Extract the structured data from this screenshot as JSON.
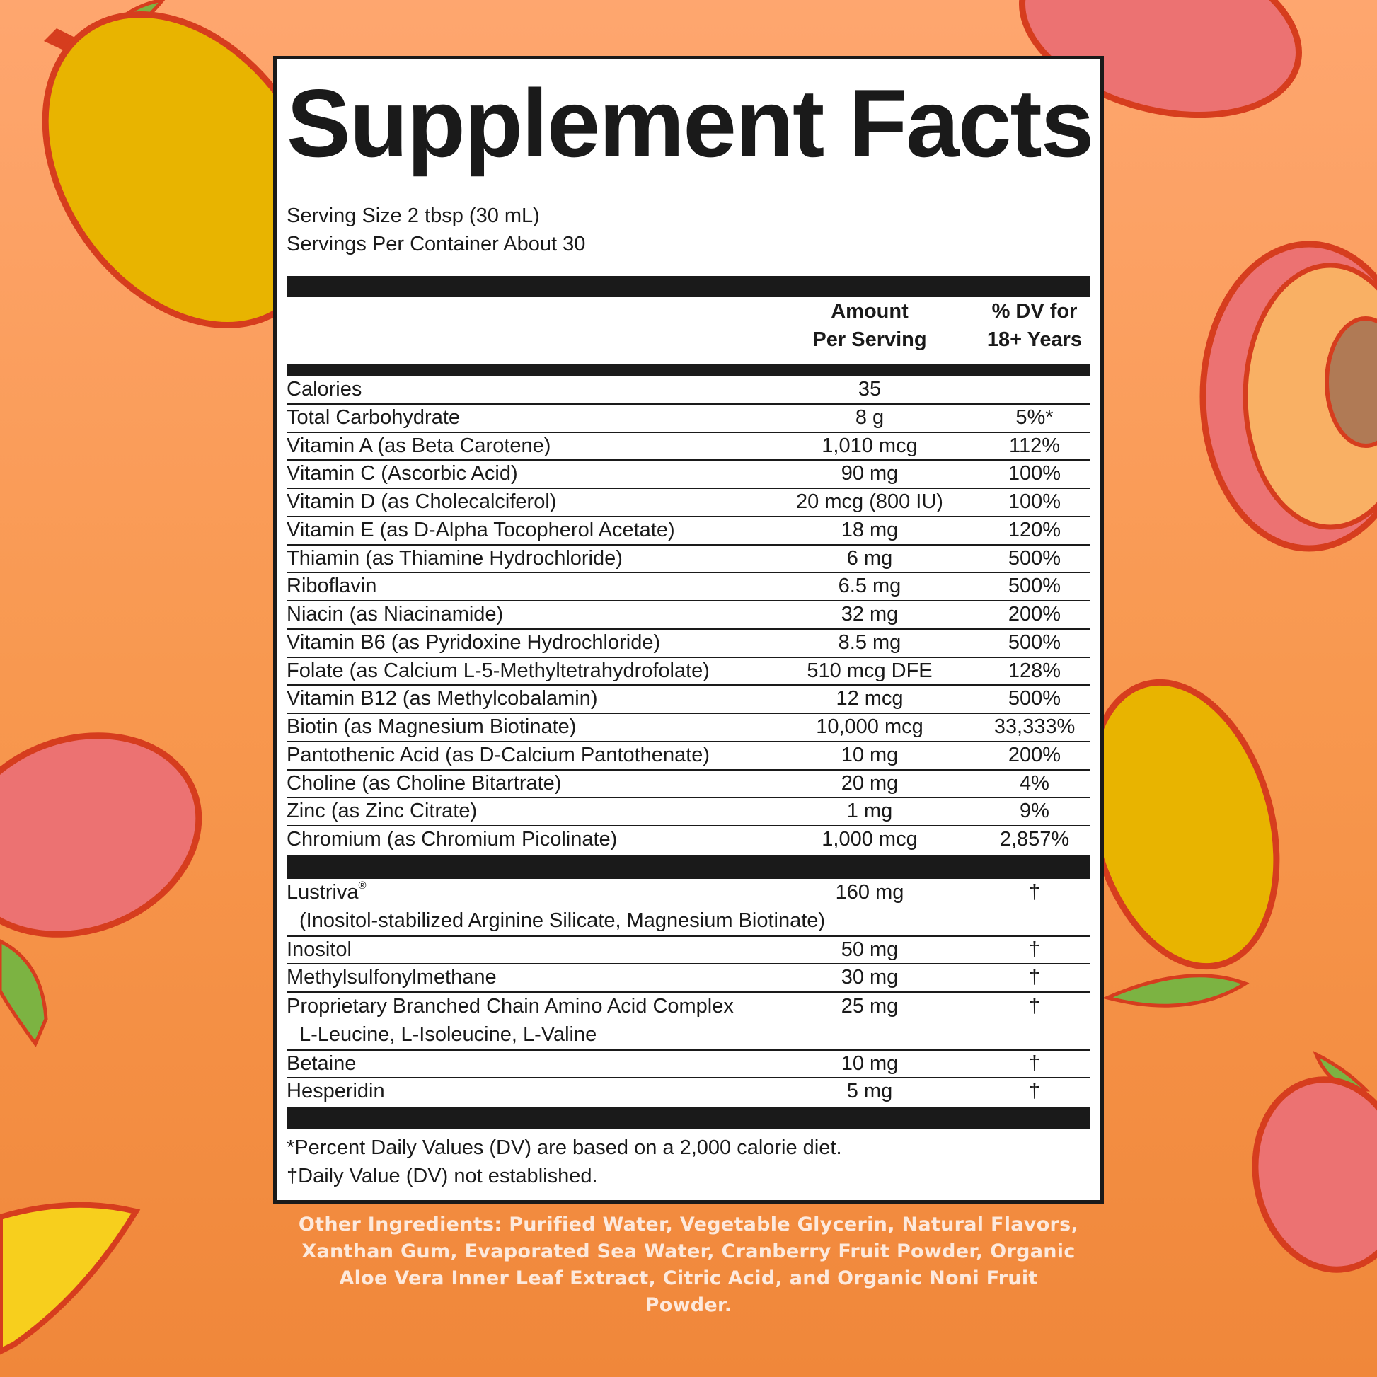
{
  "colors": {
    "background_top": "#fea66f",
    "background_bottom": "#f0873a",
    "fruit_yellow": "#e8b400",
    "fruit_pink": "#ec7272",
    "fruit_outline": "#d63d1e",
    "leaf": "#7cb342",
    "text_on_orange": "#fde9dc"
  },
  "panel": {
    "title": "Supplement Facts",
    "serving_size": "Serving Size 2 tbsp (30 mL)",
    "servings_per_container": "Servings Per Container About 30",
    "header": {
      "amount_line1": "Amount",
      "amount_line2": "Per Serving",
      "dv_line1": "% DV for",
      "dv_line2": "18+ Years"
    },
    "nutrients": [
      {
        "name": "Calories",
        "amount": "35",
        "dv": ""
      },
      {
        "name": "Total Carbohydrate",
        "amount": "8 g",
        "dv": "5%*"
      },
      {
        "name": "Vitamin A (as Beta Carotene)",
        "amount": "1,010 mcg",
        "dv": "112%"
      },
      {
        "name": "Vitamin C (Ascorbic Acid)",
        "amount": "90 mg",
        "dv": "100%"
      },
      {
        "name": "Vitamin D (as Cholecalciferol)",
        "amount": "20 mcg (800 IU)",
        "dv": "100%"
      },
      {
        "name": "Vitamin E (as D-Alpha Tocopherol Acetate)",
        "amount": "18 mg",
        "dv": "120%"
      },
      {
        "name": "Thiamin (as Thiamine Hydrochloride)",
        "amount": "6 mg",
        "dv": "500%"
      },
      {
        "name": "Riboflavin",
        "amount": "6.5 mg",
        "dv": "500%"
      },
      {
        "name": "Niacin (as Niacinamide)",
        "amount": "32 mg",
        "dv": "200%"
      },
      {
        "name": "Vitamin B6 (as Pyridoxine Hydrochloride)",
        "amount": "8.5 mg",
        "dv": "500%"
      },
      {
        "name": "Folate (as Calcium L-5-Methyltetrahydrofolate)",
        "amount": "510 mcg DFE",
        "dv": "128%"
      },
      {
        "name": "Vitamin B12 (as Methylcobalamin)",
        "amount": "12 mcg",
        "dv": "500%"
      },
      {
        "name": "Biotin (as Magnesium Biotinate)",
        "amount": "10,000 mcg",
        "dv": "33,333%"
      },
      {
        "name": "Pantothenic Acid (as D-Calcium Pantothenate)",
        "amount": "10 mg",
        "dv": "200%"
      },
      {
        "name": "Choline (as Choline Bitartrate)",
        "amount": "20 mg",
        "dv": "4%"
      },
      {
        "name": "Zinc (as Zinc Citrate)",
        "amount": "1 mg",
        "dv": "9%"
      },
      {
        "name": "Chromium (as Chromium Picolinate)",
        "amount": "1,000 mcg",
        "dv": "2,857%"
      }
    ],
    "other_actives": [
      {
        "name": "Lustriva",
        "registered": "®",
        "sub": "(Inositol-stabilized Arginine Silicate, Magnesium Biotinate)",
        "amount": "160 mg",
        "dv": "†"
      },
      {
        "name": "Inositol",
        "amount": "50 mg",
        "dv": "†"
      },
      {
        "name": "Methylsulfonylmethane",
        "amount": "30 mg",
        "dv": "†"
      },
      {
        "name": "Proprietary Branched Chain Amino Acid Complex",
        "sub": "L-Leucine, L-Isoleucine, L-Valine",
        "amount": "25 mg",
        "dv": "†"
      },
      {
        "name": "Betaine",
        "amount": "10 mg",
        "dv": "†"
      },
      {
        "name": "Hesperidin",
        "amount": "5 mg",
        "dv": "†"
      }
    ],
    "footnote_1": "*Percent Daily Values (DV) are based on a 2,000 calorie diet.",
    "footnote_2": "†Daily Value (DV) not established."
  },
  "other_ingredients": "Other Ingredients: Purified Water, Vegetable Glycerin, Natural Flavors, Xanthan Gum, Evaporated Sea Water, Cranberry Fruit Powder, Organic Aloe Vera Inner Leaf Extract, Citric Acid, and Organic Noni Fruit Powder."
}
